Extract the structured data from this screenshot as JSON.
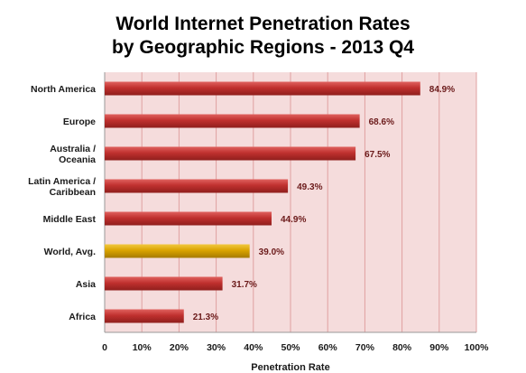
{
  "chart_data": {
    "type": "bar",
    "orientation": "horizontal",
    "title_line1": "World Internet Penetration Rates",
    "title_line2": "by Geographic Regions - 2013 Q4",
    "xlabel": "Penetration Rate",
    "ylabel": "",
    "xlim": [
      0,
      100
    ],
    "x_ticks": [
      "0",
      "10%",
      "20%",
      "30%",
      "40%",
      "50%",
      "60%",
      "70%",
      "80%",
      "90%",
      "100%"
    ],
    "grid": true,
    "categories": [
      "North America",
      "Europe",
      "Australia / Oceania",
      "Latin America / Caribbean",
      "Middle East",
      "World, Avg.",
      "Asia",
      "Africa"
    ],
    "category_lines": [
      [
        "North America"
      ],
      [
        "Europe"
      ],
      [
        "Australia /",
        "Oceania"
      ],
      [
        "Latin America /",
        "Caribbean"
      ],
      [
        "Middle East"
      ],
      [
        "World, Avg."
      ],
      [
        "Asia"
      ],
      [
        "Africa"
      ]
    ],
    "values": [
      84.9,
      68.6,
      67.5,
      49.3,
      44.9,
      39.0,
      31.7,
      21.3
    ],
    "value_labels": [
      "84.9%",
      "68.6%",
      "67.5%",
      "49.3%",
      "44.9%",
      "39.0%",
      "31.7%",
      "21.3%"
    ],
    "highlight_category": "World, Avg.",
    "colors": {
      "bar": "#c0302e",
      "bar_highlight": "#d9a300",
      "plot_background": "#f5dcdc",
      "grid": "#e0a0a0",
      "value_label": "#6b1a1a"
    }
  }
}
